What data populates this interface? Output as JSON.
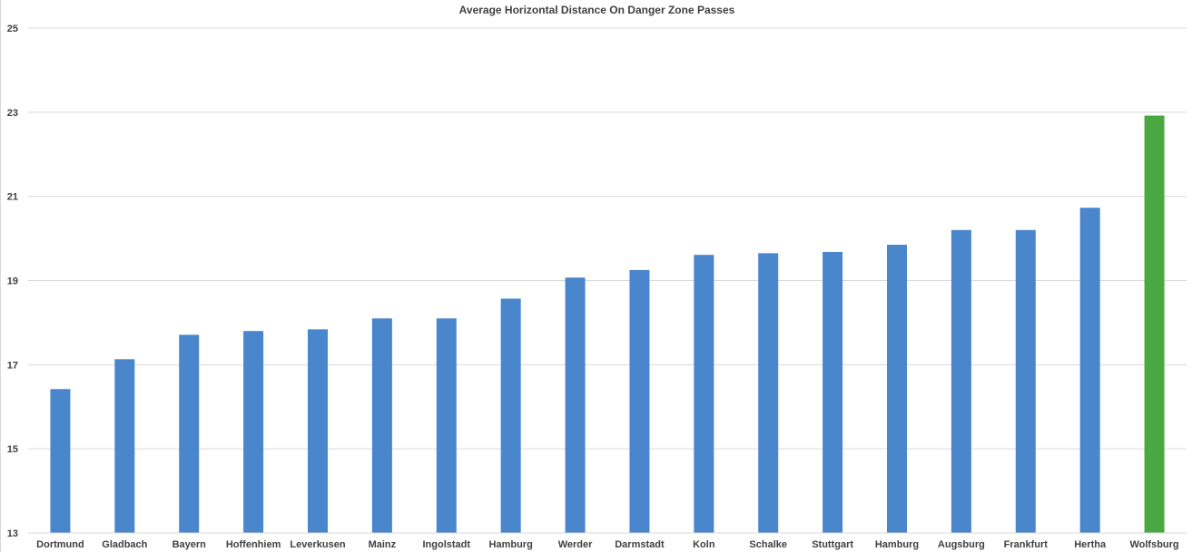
{
  "chart_data": {
    "type": "bar",
    "title": "Average Horizontal Distance On Danger Zone Passes",
    "xlabel": "",
    "ylabel": "",
    "ylim": [
      13,
      25
    ],
    "yticks": [
      13,
      15,
      17,
      19,
      21,
      23,
      25
    ],
    "grid": true,
    "categories": [
      "Dortmund",
      "Gladbach",
      "Bayern",
      "Hoffenhiem",
      "Leverkusen",
      "Mainz",
      "Ingolstadt",
      "Hamburg",
      "Werder",
      "Darmstadt",
      "Koln",
      "Schalke",
      "Stuttgart",
      "Hamburg",
      "Augsburg",
      "Frankfurt",
      "Hertha",
      "Wolfsburg"
    ],
    "values": [
      16.42,
      17.13,
      17.71,
      17.8,
      17.84,
      18.1,
      18.1,
      18.57,
      19.07,
      19.25,
      19.61,
      19.65,
      19.68,
      19.85,
      20.2,
      20.2,
      20.73,
      22.92
    ],
    "colors": {
      "default": "#4a86cc",
      "highlight": "#4aa843",
      "gridline": "#d9d9d9",
      "text": "#404040"
    },
    "highlight_index": 17
  }
}
